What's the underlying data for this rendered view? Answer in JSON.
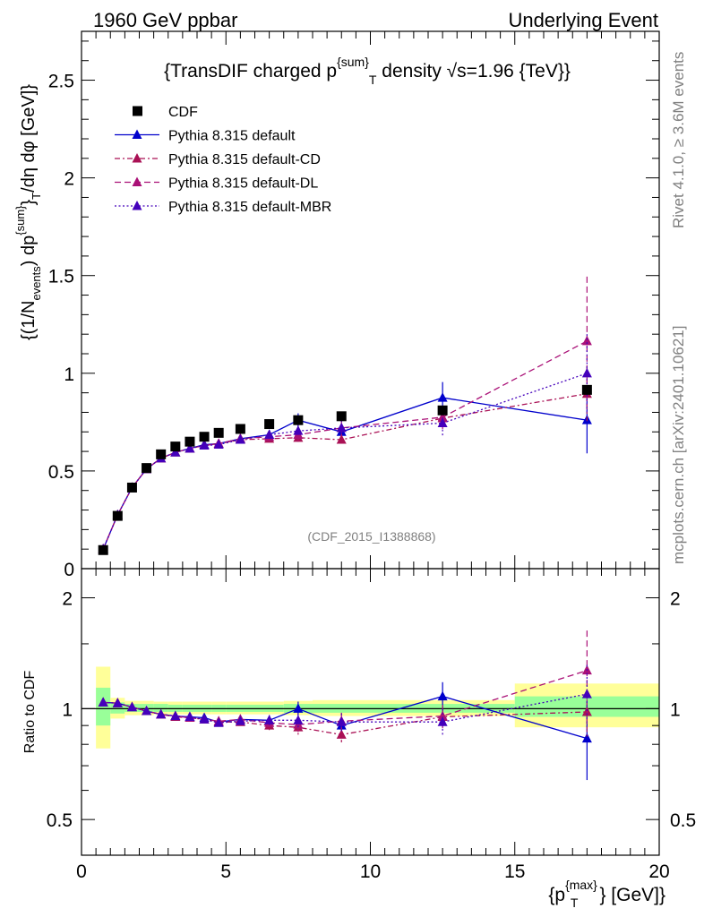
{
  "header": {
    "left": "1960 GeV ppbar",
    "right": "Underlying Event"
  },
  "side": {
    "rivet": "Rivet 4.1.0, ≥ 3.6M events",
    "mcplots": "mcplots.cern.ch [arXiv:2401.10621]"
  },
  "colors": {
    "cdf": "#000000",
    "default": "#0000cc",
    "cd": "#aa1155",
    "dl": "#aa1177",
    "mbr": "#4400bb",
    "band_inner": "#99ff99",
    "band_outer": "#ffff99"
  },
  "chart_data": [
    {
      "type": "scatter",
      "panel": "main",
      "title_parts": {
        "pre": "{TransDIF charged p",
        "sup": "{sum}",
        "sub": "T",
        "post": " density √s=1.96 {TeV}}"
      },
      "ylabel_text": "{(1/N_events) dp^{sum}_T /dη dφ [GeV]}",
      "ylabel_parts": {
        "a": "{(1/N",
        "a_sub": "events",
        "b": ") dp",
        "b_sup": "{sum}",
        "c": "}",
        "c_sub": "T",
        "d": "/dη  dφ [GeV]}"
      },
      "watermark": "(CDF_2015_I1388868)",
      "xlim": [
        0,
        20
      ],
      "ylim": [
        0,
        2.75
      ],
      "yticks": [
        0,
        0.5,
        1,
        1.5,
        2,
        2.5
      ],
      "ytick_labels": [
        "0",
        "0.5",
        "1",
        "1.5",
        "2",
        "2.5"
      ],
      "legend_position": "top-left",
      "series": [
        {
          "name": "CDF",
          "style": "data",
          "x": [
            0.75,
            1.25,
            1.75,
            2.25,
            2.75,
            3.25,
            3.75,
            4.25,
            4.75,
            5.5,
            6.5,
            7.5,
            9.0,
            12.5,
            17.5
          ],
          "y": [
            0.095,
            0.27,
            0.415,
            0.515,
            0.585,
            0.625,
            0.65,
            0.675,
            0.695,
            0.715,
            0.74,
            0.76,
            0.78,
            0.81,
            0.915
          ],
          "err": [
            0,
            0,
            0,
            0,
            0,
            0,
            0,
            0,
            0,
            0,
            0,
            0,
            0,
            0,
            0
          ]
        },
        {
          "name": "Pythia 8.315 default",
          "style": "solid",
          "x": [
            0.75,
            1.25,
            1.75,
            2.25,
            2.75,
            3.25,
            3.75,
            4.25,
            4.75,
            5.5,
            6.5,
            7.5,
            9.0,
            12.5,
            17.5
          ],
          "y": [
            0.1,
            0.275,
            0.415,
            0.51,
            0.565,
            0.595,
            0.615,
            0.635,
            0.64,
            0.665,
            0.685,
            0.76,
            0.7,
            0.875,
            0.76
          ],
          "err": [
            0,
            0,
            0,
            0,
            0.01,
            0.01,
            0.01,
            0.01,
            0.012,
            0.015,
            0.025,
            0.035,
            0.04,
            0.08,
            0.17
          ]
        },
        {
          "name": "Pythia 8.315 default-CD",
          "style": "dashed",
          "x": [
            0.75,
            1.25,
            1.75,
            2.25,
            2.75,
            3.25,
            3.75,
            4.25,
            4.75,
            5.5,
            6.5,
            7.5,
            9.0,
            12.5,
            17.5
          ],
          "y": [
            0.1,
            0.275,
            0.415,
            0.51,
            0.565,
            0.595,
            0.615,
            0.63,
            0.64,
            0.66,
            0.665,
            0.67,
            0.66,
            0.77,
            0.895
          ],
          "err": [
            0,
            0,
            0,
            0,
            0.01,
            0.01,
            0.01,
            0.01,
            0.012,
            0.015,
            0.02,
            0.03,
            0.03,
            0.05,
            0.14
          ]
        },
        {
          "name": "Pythia 8.315 default-DL",
          "style": "dashed2",
          "x": [
            0.75,
            1.25,
            1.75,
            2.25,
            2.75,
            3.25,
            3.75,
            4.25,
            4.75,
            5.5,
            6.5,
            7.5,
            9.0,
            12.5,
            17.5
          ],
          "y": [
            0.1,
            0.275,
            0.415,
            0.51,
            0.565,
            0.595,
            0.615,
            0.63,
            0.64,
            0.665,
            0.675,
            0.685,
            0.72,
            0.775,
            1.165
          ],
          "err": [
            0,
            0,
            0,
            0,
            0.01,
            0.01,
            0.01,
            0.01,
            0.012,
            0.015,
            0.02,
            0.03,
            0.04,
            0.06,
            0.33
          ]
        },
        {
          "name": "Pythia 8.315 default-MBR",
          "style": "dotted",
          "x": [
            0.75,
            1.25,
            1.75,
            2.25,
            2.75,
            3.25,
            3.75,
            4.25,
            4.75,
            5.5,
            6.5,
            7.5,
            9.0,
            12.5,
            17.5
          ],
          "y": [
            0.1,
            0.275,
            0.415,
            0.51,
            0.565,
            0.595,
            0.615,
            0.63,
            0.635,
            0.66,
            0.685,
            0.705,
            0.72,
            0.745,
            1.0
          ],
          "err": [
            0,
            0,
            0,
            0,
            0.01,
            0.01,
            0.01,
            0.01,
            0.012,
            0.015,
            0.02,
            0.03,
            0.04,
            0.07,
            0.2
          ]
        }
      ]
    },
    {
      "type": "line",
      "panel": "ratio",
      "ylabel": "Ratio to CDF",
      "xlabel_parts": {
        "pre": "{p",
        "sup": "{max}",
        "sub": "T",
        "post": "} [GeV]}"
      },
      "xlim": [
        0,
        20
      ],
      "ylim": [
        0.4,
        2.4
      ],
      "yscale": "log",
      "xticks": [
        0,
        5,
        10,
        15,
        20
      ],
      "xtick_labels": [
        "0",
        "5",
        "10",
        "15",
        "20"
      ],
      "yticks_labeled": [
        0.5,
        1,
        2
      ],
      "ytick_labels": [
        "0.5",
        "1",
        "2"
      ],
      "reference_line": 1,
      "band_edges": [
        0.5,
        1.0,
        1.5,
        2.0,
        2.5,
        3.0,
        3.5,
        4.0,
        4.5,
        5.0,
        6.0,
        7.0,
        8.0,
        10.0,
        15.0,
        20.0
      ],
      "band_inner": [
        [
          0.9,
          1.14
        ],
        [
          0.97,
          1.04
        ],
        [
          0.98,
          1.03
        ],
        [
          0.98,
          1.03
        ],
        [
          0.98,
          1.03
        ],
        [
          0.98,
          1.025
        ],
        [
          0.98,
          1.025
        ],
        [
          0.98,
          1.025
        ],
        [
          0.98,
          1.025
        ],
        [
          0.98,
          1.025
        ],
        [
          0.98,
          1.025
        ],
        [
          0.975,
          1.03
        ],
        [
          0.975,
          1.03
        ],
        [
          0.975,
          1.03
        ],
        [
          0.95,
          1.08
        ]
      ],
      "band_outer": [
        [
          0.78,
          1.3
        ],
        [
          0.94,
          1.07
        ],
        [
          0.96,
          1.05
        ],
        [
          0.96,
          1.05
        ],
        [
          0.965,
          1.045
        ],
        [
          0.965,
          1.045
        ],
        [
          0.965,
          1.045
        ],
        [
          0.965,
          1.045
        ],
        [
          0.965,
          1.045
        ],
        [
          0.965,
          1.045
        ],
        [
          0.965,
          1.045
        ],
        [
          0.96,
          1.05
        ],
        [
          0.955,
          1.055
        ],
        [
          0.955,
          1.055
        ],
        [
          0.89,
          1.17
        ]
      ],
      "series": [
        {
          "name": "Pythia 8.315 default",
          "style": "solid",
          "x": [
            0.75,
            1.25,
            1.75,
            2.25,
            2.75,
            3.25,
            3.75,
            4.25,
            4.75,
            5.5,
            6.5,
            7.5,
            9.0,
            12.5,
            17.5
          ],
          "y": [
            1.04,
            1.035,
            1.01,
            0.985,
            0.965,
            0.955,
            0.95,
            0.945,
            0.92,
            0.935,
            0.93,
            1.0,
            0.9,
            1.08,
            0.83
          ],
          "err": [
            0,
            0,
            0,
            0,
            0.01,
            0.01,
            0.012,
            0.013,
            0.015,
            0.02,
            0.03,
            0.045,
            0.05,
            0.1,
            0.19
          ]
        },
        {
          "name": "Pythia 8.315 default-CD",
          "style": "dashed",
          "x": [
            0.75,
            1.25,
            1.75,
            2.25,
            2.75,
            3.25,
            3.75,
            4.25,
            4.75,
            5.5,
            6.5,
            7.5,
            9.0,
            12.5,
            17.5
          ],
          "y": [
            1.04,
            1.035,
            1.01,
            0.985,
            0.965,
            0.95,
            0.945,
            0.935,
            0.92,
            0.92,
            0.9,
            0.89,
            0.85,
            0.95,
            0.98
          ],
          "err": [
            0,
            0,
            0,
            0,
            0.01,
            0.01,
            0.012,
            0.013,
            0.015,
            0.02,
            0.025,
            0.04,
            0.04,
            0.06,
            0.15
          ]
        },
        {
          "name": "Pythia 8.315 default-DL",
          "style": "dashed2",
          "x": [
            0.75,
            1.25,
            1.75,
            2.25,
            2.75,
            3.25,
            3.75,
            4.25,
            4.75,
            5.5,
            6.5,
            7.5,
            9.0,
            12.5,
            17.5
          ],
          "y": [
            1.04,
            1.035,
            1.01,
            0.985,
            0.965,
            0.955,
            0.945,
            0.935,
            0.925,
            0.935,
            0.915,
            0.905,
            0.925,
            0.955,
            1.27
          ],
          "err": [
            0,
            0,
            0,
            0,
            0.01,
            0.01,
            0.012,
            0.013,
            0.015,
            0.02,
            0.025,
            0.04,
            0.05,
            0.07,
            0.36
          ]
        },
        {
          "name": "Pythia 8.315 default-MBR",
          "style": "dotted",
          "x": [
            0.75,
            1.25,
            1.75,
            2.25,
            2.75,
            3.25,
            3.75,
            4.25,
            4.75,
            5.5,
            6.5,
            7.5,
            9.0,
            12.5,
            17.5
          ],
          "y": [
            1.04,
            1.035,
            1.01,
            0.985,
            0.965,
            0.955,
            0.95,
            0.935,
            0.915,
            0.925,
            0.93,
            0.93,
            0.92,
            0.92,
            1.095
          ],
          "err": [
            0,
            0,
            0,
            0,
            0.01,
            0.01,
            0.012,
            0.013,
            0.015,
            0.02,
            0.03,
            0.04,
            0.05,
            0.08,
            0.22
          ]
        }
      ]
    }
  ]
}
